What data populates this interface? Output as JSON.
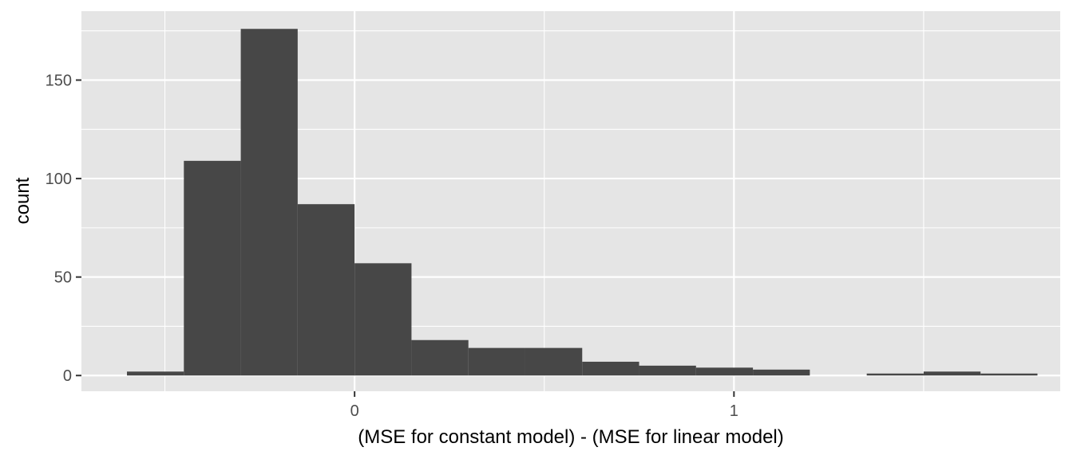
{
  "chart_data": {
    "type": "histogram",
    "title": "",
    "xlabel": "(MSE for constant model) - (MSE for linear model)",
    "ylabel": "count",
    "xlim": [
      -0.72,
      1.86
    ],
    "ylim": [
      -8,
      185
    ],
    "x_ticks": [
      0,
      1
    ],
    "x_tick_labels": [
      "0",
      "1"
    ],
    "y_ticks": [
      0,
      50,
      100,
      150
    ],
    "y_tick_labels": [
      "0",
      "50",
      "100",
      "150"
    ],
    "bin_width": 0.15,
    "bins": [
      {
        "x_start": -0.6,
        "x_end": -0.45,
        "count": 2
      },
      {
        "x_start": -0.45,
        "x_end": -0.3,
        "count": 109
      },
      {
        "x_start": -0.3,
        "x_end": -0.15,
        "count": 176
      },
      {
        "x_start": -0.15,
        "x_end": 0.0,
        "count": 87
      },
      {
        "x_start": 0.0,
        "x_end": 0.15,
        "count": 57
      },
      {
        "x_start": 0.15,
        "x_end": 0.3,
        "count": 18
      },
      {
        "x_start": 0.3,
        "x_end": 0.45,
        "count": 14
      },
      {
        "x_start": 0.45,
        "x_end": 0.6,
        "count": 14
      },
      {
        "x_start": 0.6,
        "x_end": 0.75,
        "count": 7
      },
      {
        "x_start": 0.75,
        "x_end": 0.9,
        "count": 5
      },
      {
        "x_start": 0.9,
        "x_end": 1.05,
        "count": 4
      },
      {
        "x_start": 1.05,
        "x_end": 1.2,
        "count": 3
      },
      {
        "x_start": 1.2,
        "x_end": 1.35,
        "count": 0
      },
      {
        "x_start": 1.35,
        "x_end": 1.5,
        "count": 1
      },
      {
        "x_start": 1.5,
        "x_end": 1.65,
        "count": 2
      },
      {
        "x_start": 1.65,
        "x_end": 1.8,
        "count": 1
      }
    ],
    "grid": true,
    "colors": {
      "panel_background": "#e5e5e5",
      "grid": "#ffffff",
      "bar_fill": "#474747",
      "tick_label": "#4d4d4d",
      "axis_title": "#000000"
    }
  }
}
